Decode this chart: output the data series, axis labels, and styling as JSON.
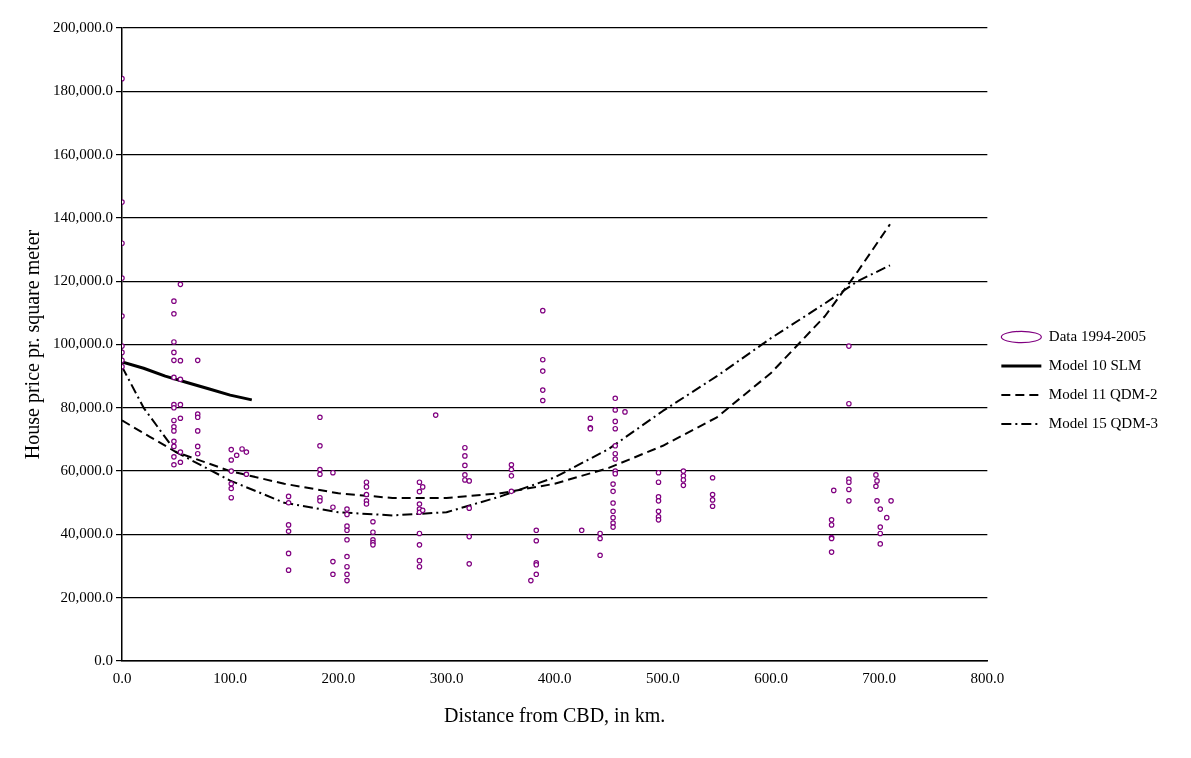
{
  "chart_data": {
    "type": "scatter",
    "xlabel": "Distance from CBD, in km.",
    "ylabel": "House price pr. square meter",
    "xlim": [
      0,
      800
    ],
    "xticks": [
      {
        "value": 0,
        "label": "0.0"
      },
      {
        "value": 100,
        "label": "100.0"
      },
      {
        "value": 200,
        "label": "200.0"
      },
      {
        "value": 300,
        "label": "300.0"
      },
      {
        "value": 400,
        "label": "400.0"
      },
      {
        "value": 500,
        "label": "500.0"
      },
      {
        "value": 600,
        "label": "600.0"
      },
      {
        "value": 700,
        "label": "700.0"
      },
      {
        "value": 800,
        "label": "800.0"
      }
    ],
    "ylim": [
      0,
      200000
    ],
    "yticks": [
      {
        "value": 0,
        "label": "0.0"
      },
      {
        "value": 20000,
        "label": "20,000.0"
      },
      {
        "value": 40000,
        "label": "40,000.0"
      },
      {
        "value": 60000,
        "label": "60,000.0"
      },
      {
        "value": 80000,
        "label": "80,000.0"
      },
      {
        "value": 100000,
        "label": "100,000.0"
      },
      {
        "value": 120000,
        "label": "120,000.0"
      },
      {
        "value": 140000,
        "label": "140,000.0"
      },
      {
        "value": 160000,
        "label": "160,000.0"
      },
      {
        "value": 180000,
        "label": "180,000.0"
      },
      {
        "value": 200000,
        "label": "200,000.0"
      }
    ],
    "grid": "y",
    "legend": "right",
    "series": [
      {
        "name": "Data 1994-2005",
        "type": "scatter",
        "marker": "circle",
        "color": "#800080",
        "x": [
          0,
          0,
          0,
          0,
          0,
          0,
          0,
          0,
          0,
          48,
          48,
          48,
          48,
          48,
          48,
          48,
          48,
          48,
          48,
          48,
          48,
          48,
          48,
          48,
          54,
          54,
          54,
          54,
          54,
          54,
          54,
          70,
          70,
          70,
          70,
          70,
          70,
          101,
          101,
          101,
          101,
          101,
          101,
          106,
          111,
          115,
          115,
          154,
          154,
          154,
          154,
          154,
          154,
          183,
          183,
          183,
          183,
          183,
          183,
          195,
          195,
          195,
          195,
          208,
          208,
          208,
          208,
          208,
          208,
          208,
          208,
          208,
          226,
          226,
          226,
          226,
          226,
          232,
          232,
          232,
          232,
          232,
          275,
          275,
          275,
          275,
          275,
          275,
          275,
          275,
          275,
          278,
          278,
          290,
          317,
          317,
          317,
          317,
          317,
          321,
          321,
          321,
          321,
          360,
          360,
          360,
          360,
          383,
          383,
          383,
          383,
          383,
          378,
          389,
          389,
          389,
          389,
          389,
          425,
          433,
          433,
          433,
          442,
          442,
          442,
          456,
          456,
          456,
          456,
          456,
          456,
          456,
          456,
          456,
          454,
          454,
          454,
          454,
          454,
          454,
          454,
          465,
          496,
          496,
          496,
          496,
          496,
          496,
          496,
          519,
          519,
          519,
          519,
          546,
          546,
          546,
          546,
          656,
          656,
          656,
          656,
          656,
          658,
          672,
          672,
          672,
          672,
          672,
          672,
          697,
          697,
          698,
          698,
          701,
          701,
          701,
          701,
          707,
          711
        ],
        "values": [
          184000,
          145000,
          132000,
          121000,
          109000,
          99500,
          97500,
          95000,
          93000,
          113700,
          109700,
          100800,
          97500,
          95000,
          89600,
          81000,
          80000,
          76000,
          74000,
          72700,
          69400,
          67800,
          64500,
          62000,
          119000,
          94900,
          89000,
          81000,
          76700,
          66000,
          62800,
          95000,
          78000,
          77000,
          72700,
          67800,
          65500,
          66800,
          63500,
          60000,
          56000,
          54500,
          51600,
          65000,
          67000,
          59000,
          66000,
          52000,
          50000,
          43000,
          41000,
          34000,
          28700,
          77000,
          68000,
          60500,
          59000,
          51600,
          50600,
          59500,
          48600,
          31400,
          27400,
          48000,
          46300,
          42600,
          41300,
          38300,
          33000,
          29800,
          27400,
          25400,
          56500,
          55000,
          52600,
          50600,
          49600,
          44000,
          40700,
          38300,
          37400,
          36700,
          56500,
          53500,
          49600,
          48000,
          47000,
          40300,
          36700,
          31700,
          29800,
          55000,
          47600,
          77700,
          67400,
          64800,
          61800,
          58800,
          57200,
          56900,
          48300,
          39300,
          30700,
          62000,
          60500,
          58500,
          53600,
          41300,
          38000,
          31000,
          30400,
          27400,
          25400,
          110700,
          95200,
          91600,
          85600,
          82300,
          41300,
          76700,
          73700,
          73400,
          40300,
          38700,
          33400,
          83000,
          79300,
          75700,
          73400,
          68000,
          65500,
          63800,
          60000,
          59200,
          55900,
          53600,
          49900,
          47300,
          45300,
          43600,
          42300,
          78700,
          59500,
          56500,
          51900,
          50600,
          47300,
          45600,
          44600,
          60000,
          58500,
          57200,
          55500,
          57900,
          52600,
          50900,
          48900,
          44600,
          43000,
          39000,
          38700,
          34400,
          53900,
          99500,
          81300,
          57500,
          56500,
          54200,
          50600,
          58800,
          55200,
          56900,
          50600,
          48000,
          42300,
          40300,
          37000,
          45300,
          50600
        ]
      },
      {
        "name": "Model 10 SLM",
        "type": "line",
        "line_style": "solid",
        "color": "#000000",
        "x": [
          0,
          20,
          40,
          60,
          80,
          100,
          120
        ],
        "values": [
          94500,
          92500,
          90000,
          88000,
          86000,
          84000,
          82500
        ]
      },
      {
        "name": "Model 11 QDM-2",
        "type": "line",
        "line_style": "dashed",
        "color": "#000000",
        "x": [
          0,
          25,
          50,
          100,
          150,
          200,
          250,
          300,
          350,
          400,
          450,
          500,
          550,
          600,
          650,
          680,
          710
        ],
        "values": [
          76000,
          71000,
          66000,
          60000,
          56000,
          53000,
          51500,
          51500,
          53000,
          56000,
          61000,
          68000,
          77000,
          91000,
          109000,
          123000,
          138000
        ]
      },
      {
        "name": "Model 15 QDM-3",
        "type": "line",
        "line_style": "dashdot",
        "color": "#000000",
        "x": [
          0,
          20,
          50,
          100,
          150,
          200,
          250,
          300,
          350,
          400,
          450,
          500,
          550,
          600,
          650,
          680,
          710
        ],
        "values": [
          93000,
          80000,
          66000,
          57000,
          50000,
          47000,
          46000,
          47000,
          52000,
          58000,
          67000,
          79000,
          90000,
          102000,
          113000,
          120000,
          125000
        ]
      }
    ]
  }
}
